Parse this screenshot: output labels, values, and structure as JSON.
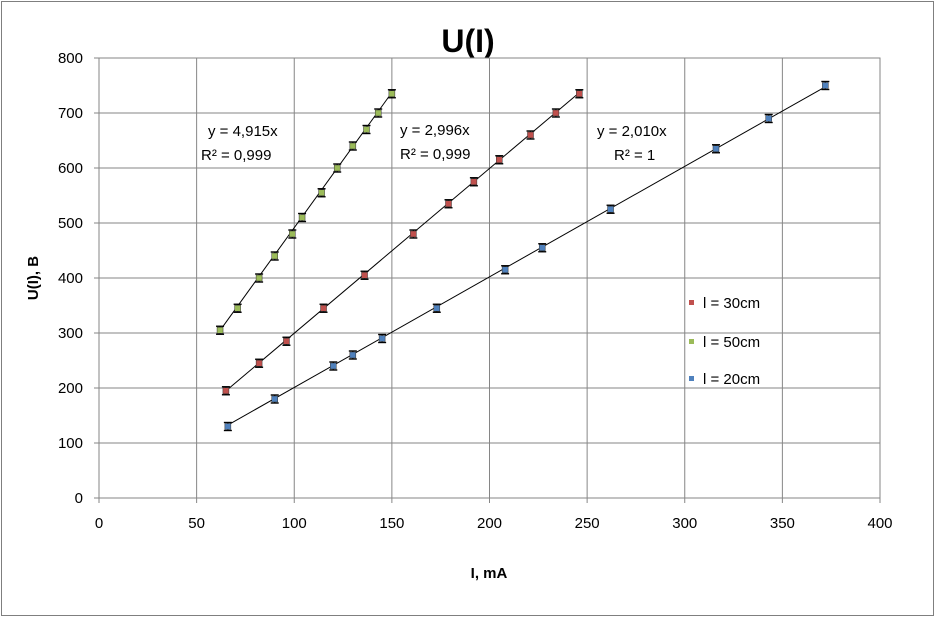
{
  "chart_data": {
    "type": "scatter",
    "title": "U(I)",
    "xlabel": "I, mA",
    "ylabel": "U(I), B",
    "xlim": [
      0,
      400
    ],
    "ylim": [
      0,
      800
    ],
    "x_ticks": [
      "0",
      "50",
      "100",
      "150",
      "200",
      "250",
      "300",
      "350",
      "400"
    ],
    "y_ticks": [
      "0",
      "100",
      "200",
      "300",
      "400",
      "500",
      "600",
      "700",
      "800"
    ],
    "grid": true,
    "legend_position": "right",
    "series": [
      {
        "name": "l = 30cm",
        "color": "#c0504d",
        "points": [
          [
            65,
            195
          ],
          [
            82,
            245
          ],
          [
            96,
            285
          ],
          [
            115,
            345
          ],
          [
            136,
            405
          ],
          [
            161,
            480
          ],
          [
            179,
            535
          ],
          [
            192,
            575
          ],
          [
            205,
            615
          ],
          [
            221,
            660
          ],
          [
            234,
            700
          ],
          [
            246,
            735
          ]
        ],
        "trendline": {
          "equation": "y = 2,996x",
          "r2": "R² = 0,999",
          "slope": 2.996
        }
      },
      {
        "name": "l = 50cm",
        "color": "#9bbb59",
        "points": [
          [
            62,
            305
          ],
          [
            71,
            345
          ],
          [
            82,
            400
          ],
          [
            90,
            440
          ],
          [
            99,
            480
          ],
          [
            104,
            510
          ],
          [
            114,
            555
          ],
          [
            122,
            600
          ],
          [
            130,
            640
          ],
          [
            137,
            670
          ],
          [
            143,
            700
          ],
          [
            150,
            735
          ]
        ],
        "trendline": {
          "equation": "y = 4,915x",
          "r2": "R² = 0,999",
          "slope": 4.915
        }
      },
      {
        "name": "l = 20cm",
        "color": "#4f81bd",
        "points": [
          [
            66,
            130
          ],
          [
            90,
            180
          ],
          [
            120,
            240
          ],
          [
            130,
            260
          ],
          [
            145,
            290
          ],
          [
            173,
            345
          ],
          [
            208,
            415
          ],
          [
            227,
            455
          ],
          [
            262,
            525
          ],
          [
            316,
            635
          ],
          [
            343,
            690
          ],
          [
            372,
            750
          ]
        ],
        "trendline": {
          "equation": "y = 2,010x",
          "r2": "R² = 1",
          "slope": 2.01
        }
      }
    ]
  }
}
